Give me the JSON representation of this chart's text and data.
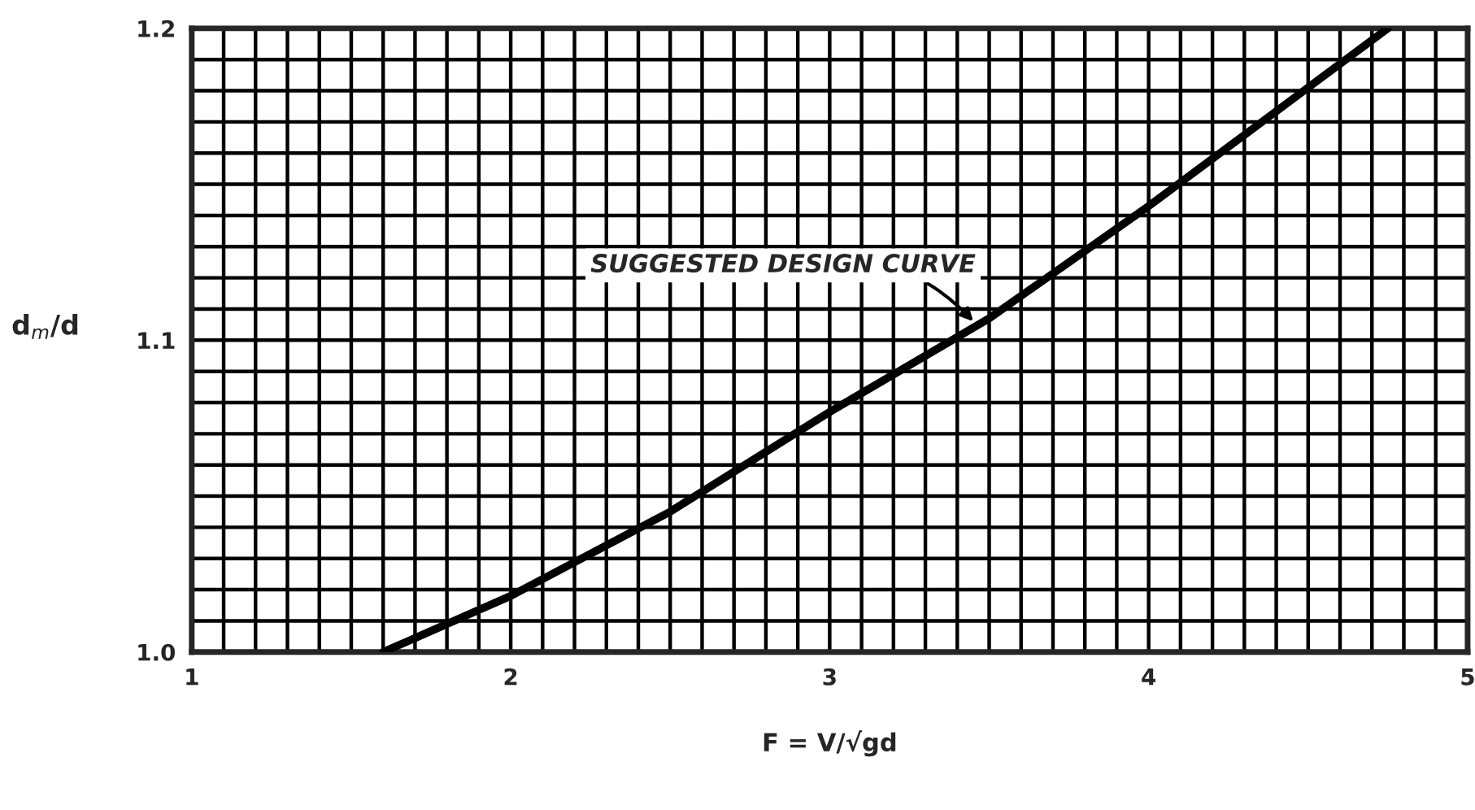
{
  "chart_data": {
    "type": "line",
    "xlabel": "F = V/√gd",
    "ylabel": "d$_{m}$/d",
    "x": [
      1.6,
      2,
      2.5,
      3,
      3.5,
      4,
      4.5,
      4.75
    ],
    "series": [
      {
        "color": "#000000",
        "values": [
          1.0,
          1.018,
          1.045,
          1.077,
          1.107,
          1.143,
          1.181,
          1.2
        ]
      }
    ],
    "xlim": [
      1,
      5
    ],
    "ylim": [
      1.0,
      1.2
    ],
    "xticks": [
      1,
      2,
      3,
      4,
      5
    ],
    "yticks": [
      {
        "value": 1.0,
        "label": "1.0"
      },
      1.1,
      1.2
    ],
    "grid": true,
    "marker": "none",
    "line_style": "solid",
    "annotations": [
      {
        "text": "SUGGESTED DESIGN CURVE",
        "x": 3.45,
        "y": 1.106
      }
    ]
  }
}
